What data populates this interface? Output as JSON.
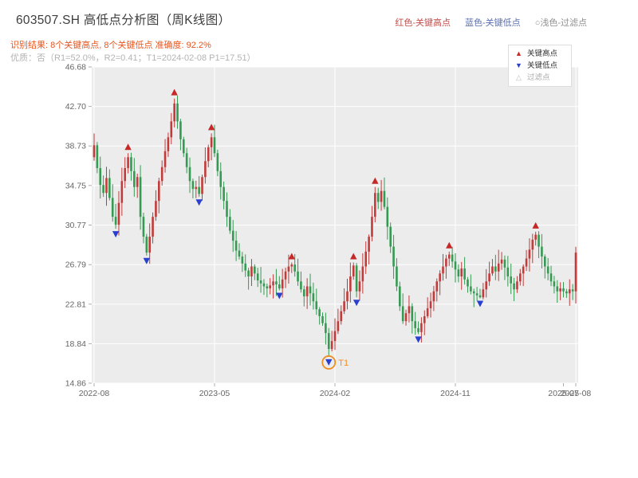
{
  "header": {
    "title": "603507.SH 高低点分析图（周K线图）",
    "legend_top": [
      {
        "label": "红色-关键高点",
        "color": "#c0504d"
      },
      {
        "label": "蓝色-关键低点",
        "color": "#5b6fae"
      },
      {
        "label": "○浅色-过滤点",
        "color": "#909090"
      }
    ],
    "result_line": "识别结果: 8个关键高点, 8个关键低点  准确度: 92.2%",
    "result_color": "#e8551e",
    "quality_line": "优质：否（R1=52.0%，R2=0.41；T1=2024-02-08 P1=17.51）",
    "quality_color": "#b3b3b3"
  },
  "chart_legend": {
    "items": [
      {
        "label": "关键高点",
        "symbol": "▲",
        "color": "#c62828",
        "label_color": "#333333"
      },
      {
        "label": "关键低点",
        "symbol": "▼",
        "color": "#2940cf",
        "label_color": "#333333"
      },
      {
        "label": "过滤点",
        "symbol": "△",
        "color": "#bbbbbb",
        "label_color": "#aaaaaa"
      }
    ]
  },
  "chart_data": {
    "type": "candlestick",
    "title": "603507.SH 高低点分析图（周K线图）",
    "frequency": "weekly",
    "weeks": 157,
    "ylim": [
      14.86,
      46.68
    ],
    "y_ticks": [
      46.68,
      42.7,
      38.73,
      34.75,
      30.77,
      26.79,
      22.81,
      18.84,
      14.86
    ],
    "x_ticks": [
      {
        "week": 0,
        "label": "2022-08",
        "grid": true
      },
      {
        "week": 39,
        "label": "2023-05",
        "grid": true
      },
      {
        "week": 78,
        "label": "2024-02",
        "grid": true
      },
      {
        "week": 117,
        "label": "2024-11",
        "grid": true
      },
      {
        "week": 152,
        "label": "2025-07",
        "grid": false
      },
      {
        "week": 156,
        "label": "2025-08",
        "grid": true
      }
    ],
    "closes": [
      38.8,
      36.5,
      34.8,
      34.0,
      35.5,
      33.5,
      31.6,
      30.8,
      33.0,
      35.2,
      36.5,
      37.6,
      36.2,
      34.6,
      35.6,
      31.6,
      29.6,
      28.0,
      29.6,
      31.6,
      33.2,
      35.2,
      36.6,
      38.2,
      39.6,
      41.2,
      43.0,
      41.2,
      39.4,
      38.0,
      36.6,
      35.2,
      34.4,
      34.6,
      33.9,
      35.6,
      37.2,
      38.6,
      39.6,
      38.0,
      36.2,
      34.6,
      33.2,
      31.6,
      30.2,
      29.2,
      28.2,
      27.6,
      26.9,
      26.2,
      25.6,
      26.6,
      25.9,
      25.2,
      24.9,
      24.6,
      24.4,
      24.7,
      25.1,
      24.8,
      24.4,
      25.3,
      26.1,
      26.6,
      26.8,
      26.1,
      25.1,
      24.3,
      23.6,
      24.6,
      23.9,
      23.1,
      22.3,
      21.6,
      20.9,
      19.9,
      18.3,
      19.1,
      20.1,
      21.1,
      22.1,
      23.1,
      24.1,
      25.6,
      26.7,
      24.1,
      25.1,
      26.6,
      28.1,
      29.6,
      31.6,
      34.0,
      33.1,
      34.2,
      32.6,
      30.6,
      28.6,
      26.6,
      24.6,
      22.6,
      21.1,
      21.9,
      22.6,
      21.1,
      20.4,
      20.0,
      20.9,
      21.6,
      22.4,
      23.1,
      24.1,
      25.1,
      25.9,
      26.6,
      27.4,
      27.8,
      27.1,
      26.3,
      25.6,
      26.4,
      25.3,
      24.6,
      24.1,
      23.9,
      23.7,
      23.5,
      24.3,
      25.1,
      25.9,
      26.6,
      26.1,
      26.9,
      27.3,
      26.5,
      25.6,
      24.9,
      24.3,
      25.1,
      25.9,
      26.6,
      27.4,
      28.3,
      29.3,
      29.8,
      28.6,
      27.6,
      26.6,
      25.9,
      25.1,
      24.6,
      24.1,
      24.4,
      24.1,
      23.9,
      24.3,
      24.1,
      28.0
    ],
    "key_highs": [
      {
        "week": 11,
        "value": 38.0
      },
      {
        "week": 26,
        "value": 43.5
      },
      {
        "week": 38,
        "value": 40.0
      },
      {
        "week": 64,
        "value": 27.0
      },
      {
        "week": 84,
        "value": 27.0
      },
      {
        "week": 91,
        "value": 34.6
      },
      {
        "week": 115,
        "value": 28.1
      },
      {
        "week": 143,
        "value": 30.1
      }
    ],
    "key_lows": [
      {
        "week": 7,
        "value": 30.4
      },
      {
        "week": 17,
        "value": 27.7
      },
      {
        "week": 34,
        "value": 33.6
      },
      {
        "week": 60,
        "value": 24.2
      },
      {
        "week": 76,
        "value": 17.51
      },
      {
        "week": 85,
        "value": 23.5
      },
      {
        "week": 105,
        "value": 19.8
      },
      {
        "week": 125,
        "value": 23.4
      }
    ],
    "t1": {
      "week": 76,
      "value": 17.51,
      "label": "T1",
      "date": "2024-02-08",
      "color": "#ef8e22"
    },
    "colors": {
      "up": "#c23b3b",
      "down": "#359a52",
      "plot_bg": "#ececec",
      "grid": "#ffffff",
      "axis_text": "#666666",
      "tick": "#999999",
      "marker_high": "#c62828",
      "marker_low": "#2940cf"
    }
  }
}
